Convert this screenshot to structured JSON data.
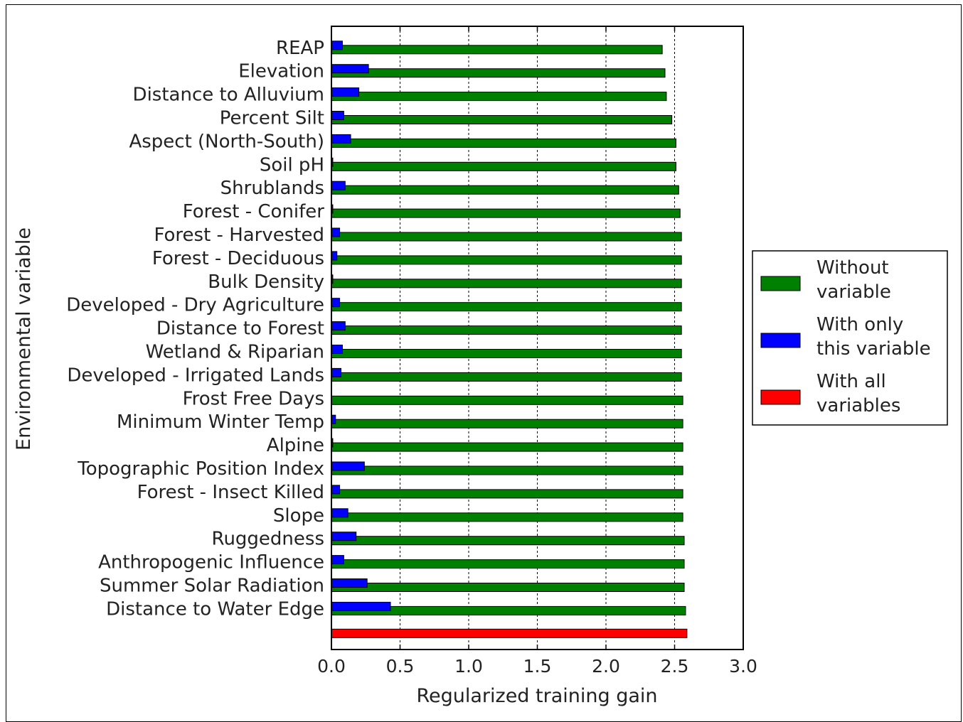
{
  "chart_data": {
    "type": "bar",
    "orientation": "horizontal",
    "xlabel": "Regularized training gain",
    "ylabel": "Environmental variable",
    "xlim": [
      0.0,
      3.0
    ],
    "xticks": [
      "0.0",
      "0.5",
      "1.0",
      "1.5",
      "2.0",
      "2.5",
      "3.0"
    ],
    "grid": "vertical dashed",
    "legend_position": "right",
    "categories": [
      "REAP",
      "Elevation",
      "Distance to Alluvium",
      "Percent Silt",
      "Aspect (North-South)",
      "Soil pH",
      "Shrublands",
      "Forest - Conifer",
      "Forest - Harvested",
      "Forest - Deciduous",
      "Bulk Density",
      "Developed - Dry Agriculture",
      "Distance to Forest",
      "Wetland & Riparian",
      "Developed - Irrigated Lands",
      "Frost Free Days",
      "Minimum Winter Temp",
      "Alpine",
      "Topographic Position Index",
      "Forest - Insect Killed",
      "Slope",
      "Ruggedness",
      "Anthropogenic Influence",
      "Summer Solar Radiation",
      "Distance to Water Edge"
    ],
    "series": [
      {
        "name": "Without variable",
        "color": "#008000",
        "values": [
          2.41,
          2.43,
          2.44,
          2.48,
          2.51,
          2.51,
          2.53,
          2.54,
          2.55,
          2.55,
          2.55,
          2.55,
          2.55,
          2.55,
          2.55,
          2.56,
          2.56,
          2.56,
          2.56,
          2.56,
          2.56,
          2.57,
          2.57,
          2.57,
          2.58
        ]
      },
      {
        "name": "With only this variable",
        "color": "#0000ff",
        "values": [
          0.08,
          0.27,
          0.2,
          0.09,
          0.14,
          0.01,
          0.1,
          0.01,
          0.06,
          0.04,
          0.01,
          0.06,
          0.1,
          0.08,
          0.07,
          0.0,
          0.03,
          0.01,
          0.24,
          0.06,
          0.12,
          0.18,
          0.09,
          0.26,
          0.43
        ]
      }
    ],
    "all_variables": {
      "name": "With all variables",
      "color": "#ff0000",
      "value": 2.59
    },
    "legend": [
      {
        "lines": [
          "Without",
          "variable"
        ],
        "color": "#008000"
      },
      {
        "lines": [
          "With only",
          "this variable"
        ],
        "color": "#0000ff"
      },
      {
        "lines": [
          "With all",
          "variables"
        ],
        "color": "#ff0000"
      }
    ]
  }
}
